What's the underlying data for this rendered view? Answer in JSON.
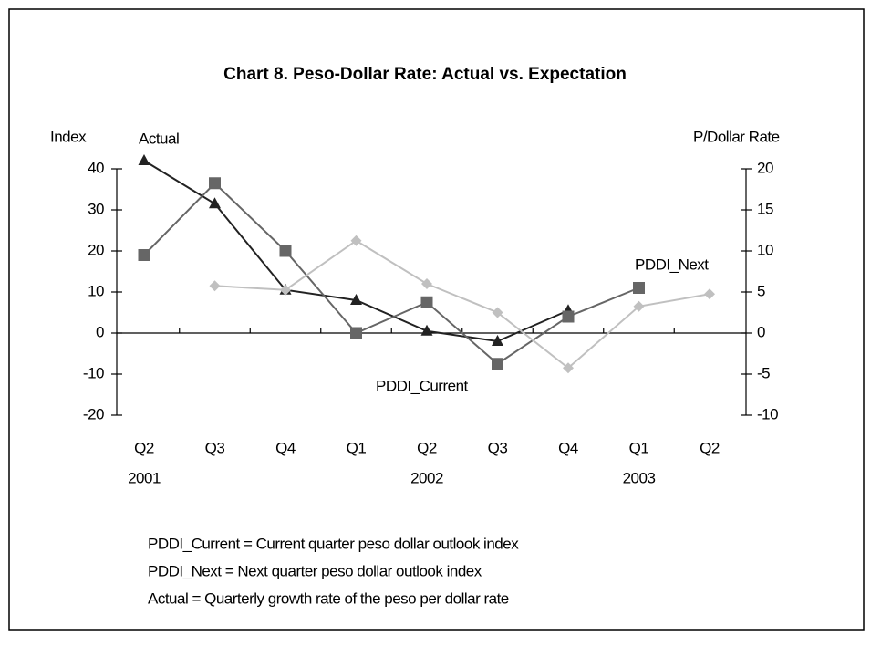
{
  "chart_data": {
    "type": "line",
    "title": "Chart 8. Peso-Dollar Rate: Actual vs. Expectation",
    "ylabel": "Index",
    "y2label": "P/Dollar Rate",
    "categories": [
      "Q2",
      "Q3",
      "Q4",
      "Q1",
      "Q2",
      "Q3",
      "Q4",
      "Q1",
      "Q2"
    ],
    "year_labels": [
      "2001",
      null,
      null,
      null,
      "2002",
      null,
      null,
      "2003",
      null
    ],
    "series": [
      {
        "name": "Actual",
        "color": "#222222",
        "marker": "triangle",
        "values": [
          42,
          31.5,
          10.5,
          8,
          0.5,
          -2,
          5.5,
          null,
          null
        ]
      },
      {
        "name": "PDDI_Current",
        "color": "#666666",
        "marker": "square",
        "values": [
          19,
          36.5,
          20,
          0,
          7.5,
          -7.5,
          4,
          11,
          null
        ]
      },
      {
        "name": "PDDI_Next",
        "color": "#c0c0c0",
        "marker": "diamond",
        "axis": "y2",
        "values": [
          null,
          5.75,
          5.25,
          11.25,
          6,
          2.5,
          -4.25,
          3.25,
          4.75
        ]
      }
    ],
    "ylim": [
      -20,
      40
    ],
    "yticks": [
      40,
      30,
      20,
      10,
      0,
      -10,
      -20
    ],
    "y2lim": [
      -10,
      20
    ],
    "y2ticks": [
      20,
      15,
      10,
      5,
      0,
      -5,
      -10
    ],
    "notes": [
      "PDDI_Current = Current quarter peso dollar outlook index",
      "PDDI_Next = Next quarter peso dollar outlook index",
      "Actual = Quarterly growth rate of the peso per dollar rate"
    ]
  }
}
